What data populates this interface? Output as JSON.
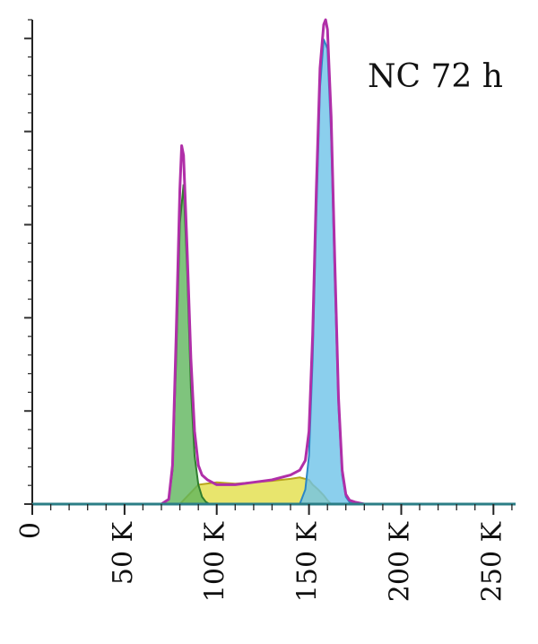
{
  "chart_data": {
    "type": "area",
    "annotation": "NC 72 h",
    "xlabel": "",
    "ylabel": "",
    "xlim": [
      0,
      262000
    ],
    "ylim": [
      0,
      1.0
    ],
    "x_ticks": [
      0,
      50000,
      100000,
      150000,
      200000,
      250000
    ],
    "x_tick_labels": [
      "0",
      "50 K",
      "100 K",
      "150 K",
      "200 K",
      "250 K"
    ],
    "colors": {
      "total": "#b02fa8",
      "g1_fill": "#5fb55c",
      "g1_stroke": "#2f7d2e",
      "s_fill": "#e0dc3c",
      "s_stroke": "#b8a51c",
      "g2_fill": "#6ec3e8",
      "g2_stroke": "#2c86c5",
      "axis": "#2b7e86"
    },
    "series": [
      {
        "name": "",
        "role": "total",
        "x": [
          0,
          70000,
          74000,
          76000,
          78000,
          80000,
          81000,
          82000,
          84000,
          86000,
          88000,
          90000,
          92000,
          95000,
          100000,
          110000,
          120000,
          130000,
          140000,
          145000,
          148000,
          150000,
          152000,
          154000,
          156000,
          158000,
          159000,
          160000,
          162000,
          164000,
          166000,
          168000,
          170000,
          172000,
          175000,
          180000,
          262000
        ],
        "values": [
          0,
          0,
          0.01,
          0.08,
          0.35,
          0.65,
          0.74,
          0.72,
          0.52,
          0.3,
          0.15,
          0.08,
          0.06,
          0.05,
          0.04,
          0.04,
          0.045,
          0.05,
          0.06,
          0.07,
          0.09,
          0.15,
          0.35,
          0.65,
          0.9,
          0.99,
          1.0,
          0.98,
          0.8,
          0.5,
          0.22,
          0.07,
          0.02,
          0.008,
          0.004,
          0,
          0
        ]
      },
      {
        "name": "",
        "role": "G1",
        "x": [
          70000,
          74000,
          76000,
          78000,
          80000,
          82000,
          84000,
          86000,
          88000,
          90000,
          92000,
          94000,
          96000
        ],
        "values": [
          0,
          0.01,
          0.07,
          0.3,
          0.58,
          0.66,
          0.48,
          0.24,
          0.1,
          0.04,
          0.015,
          0.005,
          0
        ]
      },
      {
        "name": "",
        "role": "S",
        "x": [
          80000,
          85000,
          90000,
          100000,
          110000,
          120000,
          130000,
          140000,
          145000,
          150000,
          152000,
          155000,
          158000,
          160000,
          162000
        ],
        "values": [
          0,
          0.02,
          0.04,
          0.045,
          0.042,
          0.045,
          0.048,
          0.052,
          0.055,
          0.05,
          0.04,
          0.03,
          0.018,
          0.008,
          0
        ]
      },
      {
        "name": "",
        "role": "G2",
        "x": [
          145000,
          148000,
          150000,
          152000,
          154000,
          156000,
          158000,
          160000,
          162000,
          164000,
          166000,
          168000,
          170000,
          172000,
          175000
        ],
        "values": [
          0,
          0.03,
          0.1,
          0.3,
          0.6,
          0.86,
          0.96,
          0.94,
          0.76,
          0.46,
          0.2,
          0.06,
          0.015,
          0.004,
          0
        ]
      }
    ]
  }
}
